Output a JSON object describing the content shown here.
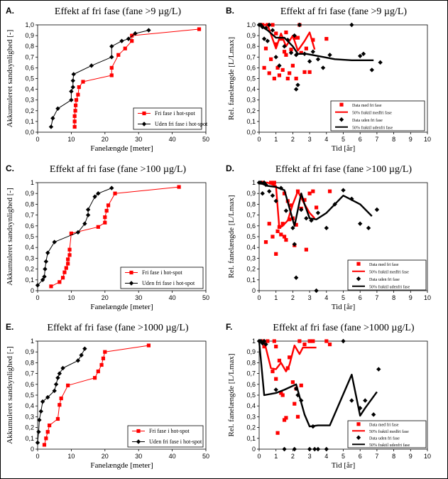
{
  "colors": {
    "red": "#ff0000",
    "black": "#000000"
  },
  "chart_data": [
    {
      "letter": "A.",
      "type": "line",
      "title": "Effekt af fri fase (fane >9 µg/L)",
      "xlabel": "Fanelængde [meter]",
      "ylabel": "Akkumuleret sandsynlighed [-]",
      "xlim": [
        0,
        50
      ],
      "ylim": [
        0,
        1.0
      ],
      "xticks": [
        0,
        10,
        20,
        30,
        40,
        50
      ],
      "yticks": [
        0,
        0.1,
        0.2,
        0.3,
        0.4,
        0.5,
        0.6,
        0.7,
        0.8,
        0.9,
        1.0
      ],
      "ytick_labels": [
        "0,0",
        "0,1",
        "0,2",
        "0,3",
        "0,4",
        "0,5",
        "0,6",
        "0,7",
        "0,8",
        "0,9",
        "1,0"
      ],
      "legend": [
        "Fri fase i hot-spot",
        "Uden fri fase i hot-spot"
      ],
      "series": [
        {
          "name": "Fri fase i hot-spot",
          "style": "red-square-line",
          "x": [
            11,
            11,
            11,
            11.2,
            11.3,
            11.5,
            12,
            12.3,
            13.5,
            22,
            22,
            24,
            26,
            28,
            28,
            48
          ],
          "y": [
            0.05,
            0.1,
            0.15,
            0.2,
            0.25,
            0.3,
            0.35,
            0.42,
            0.47,
            0.53,
            0.6,
            0.72,
            0.78,
            0.85,
            0.9,
            0.96
          ]
        },
        {
          "name": "Uden fri fase i hot-spot",
          "style": "black-diamond-line",
          "x": [
            4,
            4.5,
            6,
            10,
            10,
            10.5,
            10.5,
            10.7,
            16,
            22,
            22,
            25,
            27,
            29,
            33
          ],
          "y": [
            0.05,
            0.13,
            0.22,
            0.3,
            0.38,
            0.42,
            0.48,
            0.54,
            0.62,
            0.7,
            0.8,
            0.85,
            0.87,
            0.92,
            0.95
          ]
        }
      ]
    },
    {
      "letter": "B.",
      "type": "scatter",
      "title": "Effekt af fri fase (fane >9 µg/L)",
      "xlabel": "Tid [år]",
      "ylabel": "Rel. fanelængde [L/Lmax]",
      "xlim": [
        0,
        10
      ],
      "ylim": [
        0,
        1.0
      ],
      "xticks": [
        0,
        1,
        2,
        3,
        4,
        5,
        6,
        7,
        8,
        9,
        10
      ],
      "yticks": [
        0,
        0.1,
        0.2,
        0.3,
        0.4,
        0.5,
        0.6,
        0.7,
        0.8,
        0.9,
        1.0
      ],
      "ytick_labels": [
        "0,0",
        "0,1",
        "0,2",
        "0,3",
        "0,4",
        "0,5",
        "0,6",
        "0,7",
        "0,8",
        "0,9",
        "1,0"
      ],
      "legend": [
        "Data med fri fase",
        "50% fraktil medfri fase",
        "Data uden fri fase",
        "50% fraktil udenfri fase"
      ],
      "series": [
        {
          "name": "Data med fri fase",
          "style": "red-square-points",
          "x": [
            0.1,
            0.2,
            0.3,
            0.4,
            0.5,
            0.6,
            0.8,
            1.0,
            1.1,
            1.3,
            1.5,
            1.6,
            1.7,
            2.0,
            2.1,
            2.3,
            2.5,
            2.7,
            3.0,
            3.2,
            0.9,
            1.2,
            1.4,
            1.8,
            1.9,
            2.2,
            0.7,
            1.0,
            2.8,
            4.0,
            1.6,
            2.4
          ],
          "y": [
            1.0,
            1.0,
            0.6,
            0.78,
            1.0,
            0.55,
            1.0,
            0.82,
            0.6,
            0.87,
            0.75,
            0.72,
            0.5,
            0.62,
            0.88,
            0.88,
            0.74,
            0.56,
            0.56,
            0.86,
            0.5,
            0.53,
            0.58,
            0.55,
            0.77,
            0.5,
            0.68,
            0.92,
            0.78,
            0.87,
            0.93,
            1.0
          ]
        },
        {
          "name": "50% fraktil medfri fase",
          "style": "red-line",
          "x": [
            0,
            0.5,
            1.0,
            1.3,
            1.6,
            2.0,
            2.3,
            2.7,
            3.0,
            3.3
          ],
          "y": [
            1.0,
            1.0,
            0.78,
            0.92,
            0.8,
            0.9,
            0.76,
            0.85,
            0.93,
            0.77
          ]
        },
        {
          "name": "Data uden fri fase",
          "style": "black-diamond-points",
          "x": [
            0,
            0.1,
            0.2,
            0.3,
            0.4,
            0.5,
            0.6,
            0.8,
            1.0,
            1.2,
            1.5,
            1.7,
            1.9,
            2.1,
            2.2,
            2.4,
            2.7,
            3.0,
            3.2,
            3.5,
            3.8,
            4.2,
            5.5,
            6.0,
            6.2,
            6.7,
            7.2,
            2.3,
            2.2
          ],
          "y": [
            1.0,
            1.0,
            0.98,
            0.87,
            0.97,
            0.85,
            1.0,
            0.95,
            0.7,
            0.62,
            0.8,
            0.86,
            0.74,
            0.9,
            0.72,
            1.0,
            0.73,
            0.66,
            0.75,
            0.68,
            0.6,
            0.72,
            1.0,
            0.71,
            0.73,
            0.58,
            0.65,
            0.44,
            0.4
          ]
        },
        {
          "name": "50% fraktil udenfri fase",
          "style": "black-line",
          "x": [
            0,
            0.5,
            1.0,
            1.5,
            2.0,
            2.3,
            2.8,
            3.5,
            4.5,
            5.5,
            6.0,
            6.8
          ],
          "y": [
            1.0,
            0.95,
            0.88,
            0.88,
            0.8,
            0.73,
            0.73,
            0.71,
            0.68,
            0.67,
            0.67,
            0.67
          ]
        }
      ]
    },
    {
      "letter": "C.",
      "type": "line",
      "title": "Effekt af fri fase (fane >100 µg/L)",
      "xlabel": "Fanelængde [meter]",
      "ylabel": "Akkumuleret sandsynlighed [-]",
      "xlim": [
        0,
        50
      ],
      "ylim": [
        0,
        1.0
      ],
      "xticks": [
        0,
        10,
        20,
        30,
        40,
        50
      ],
      "yticks": [
        0,
        0.1,
        0.2,
        0.3,
        0.4,
        0.5,
        0.6,
        0.7,
        0.8,
        0.9,
        1.0
      ],
      "ytick_labels": [
        "0",
        "0,1",
        "0,2",
        "0,3",
        "0,4",
        "0,5",
        "0,6",
        "0,7",
        "0,8",
        "0,9",
        "1"
      ],
      "legend": [
        "Fri fase i hot-spot",
        "Uden fri fase i hot-spot"
      ],
      "series": [
        {
          "name": "Fri fase i hot-spot",
          "style": "red-square-line",
          "x": [
            4,
            6.5,
            7.5,
            8,
            8.5,
            9,
            9,
            9.5,
            9.5,
            10,
            18,
            20,
            20,
            20.5,
            21,
            23,
            42
          ],
          "y": [
            0.04,
            0.08,
            0.12,
            0.17,
            0.21,
            0.25,
            0.29,
            0.33,
            0.38,
            0.53,
            0.59,
            0.63,
            0.68,
            0.74,
            0.79,
            0.9,
            0.96
          ]
        },
        {
          "name": "Uden fri fase i hot-spot",
          "style": "black-diamond-line",
          "x": [
            0,
            1.5,
            2,
            2.2,
            2.5,
            3,
            5,
            12,
            14,
            15,
            15,
            17,
            18,
            22
          ],
          "y": [
            0.05,
            0.1,
            0.13,
            0.2,
            0.27,
            0.35,
            0.45,
            0.54,
            0.62,
            0.7,
            0.75,
            0.87,
            0.9,
            0.95
          ]
        }
      ]
    },
    {
      "letter": "D.",
      "type": "scatter",
      "title": "Effekt af fri fase (fane >100 µg/L)",
      "xlabel": "Tid [år]",
      "ylabel": "Rel. fanelængde [L/Lmax]",
      "xlim": [
        0,
        10
      ],
      "ylim": [
        0,
        1.0
      ],
      "xticks": [
        0,
        1,
        2,
        3,
        4,
        5,
        6,
        7,
        8,
        9,
        10
      ],
      "yticks": [
        0,
        0.1,
        0.2,
        0.3,
        0.4,
        0.5,
        0.6,
        0.7,
        0.8,
        0.9,
        1.0
      ],
      "ytick_labels": [
        "0",
        "0,1",
        "0,2",
        "0,3",
        "0,4",
        "0,5",
        "0,6",
        "0,7",
        "0,8",
        "0,9",
        "1"
      ],
      "legend": [
        "Data med fri fase",
        "50% fraktil medfri fase",
        "Data uden fri fase",
        "50% fraktil udenfri fase"
      ],
      "series": [
        {
          "name": "Data med fri fase",
          "style": "red-square-points",
          "x": [
            0.2,
            0.4,
            0.6,
            0.8,
            1.0,
            1.1,
            1.2,
            1.3,
            1.4,
            1.5,
            1.6,
            1.7,
            1.8,
            2.0,
            2.1,
            2.3,
            2.5,
            2.7,
            2.8,
            3.0,
            3.2,
            3.4,
            4.2,
            0.7,
            0.9,
            1.5,
            2.2,
            1.9
          ],
          "y": [
            1.0,
            0.45,
            0.62,
            0.5,
            0.34,
            0.55,
            0.59,
            0.52,
            0.62,
            0.5,
            0.47,
            0.83,
            0.66,
            0.67,
            0.42,
            0.92,
            0.76,
            0.84,
            0.38,
            0.9,
            0.92,
            0.77,
            0.92,
            1.0,
            1.0,
            0.9,
            0.61,
            0.79
          ]
        },
        {
          "name": "50% fraktil medfri fase",
          "style": "red-line",
          "x": [
            0,
            0.5,
            1.0,
            1.2,
            1.4,
            1.7,
            2.0,
            2.3,
            2.7,
            3.0,
            3.3
          ],
          "y": [
            1.0,
            1.0,
            0.97,
            0.58,
            0.6,
            0.65,
            0.8,
            0.92,
            0.8,
            0.72,
            0.67
          ]
        },
        {
          "name": "Data uden fri fase",
          "style": "black-diamond-points",
          "x": [
            0,
            0.1,
            0.2,
            0.3,
            0.4,
            0.6,
            0.8,
            1.0,
            1.3,
            1.6,
            2.0,
            2.2,
            2.5,
            2.8,
            3.1,
            3.5,
            4.0,
            4.5,
            5.0,
            5.5,
            6.0,
            6.5,
            7.0,
            2.1,
            3.4
          ],
          "y": [
            1.0,
            1.0,
            0.9,
            1.0,
            0.98,
            0.92,
            0.88,
            0.83,
            0.95,
            0.74,
            0.58,
            0.12,
            0.75,
            0.67,
            0.65,
            0.72,
            0.58,
            0.8,
            0.93,
            0.85,
            0.62,
            0.58,
            0.75,
            0.43,
            0.0
          ]
        },
        {
          "name": "50% fraktil udenfri fase",
          "style": "black-line",
          "x": [
            0,
            0.5,
            1.0,
            1.5,
            2.1,
            2.5,
            2.7,
            3.0,
            3.4,
            4.0,
            5.0,
            5.5,
            6.0,
            6.7
          ],
          "y": [
            1.0,
            0.97,
            0.96,
            0.93,
            0.6,
            0.9,
            0.8,
            0.67,
            0.66,
            0.72,
            0.88,
            0.84,
            0.8,
            0.69
          ]
        }
      ]
    },
    {
      "letter": "E.",
      "type": "line",
      "title": "Effekt af fri fase (fane >1000 µg/L)",
      "xlabel": "Fanelængde [meter]",
      "ylabel": "Akkumuleret sandsynlighed [-]",
      "xlim": [
        0,
        50
      ],
      "ylim": [
        0,
        1.0
      ],
      "xticks": [
        0,
        10,
        20,
        30,
        40,
        50
      ],
      "yticks": [
        0,
        0.1,
        0.2,
        0.3,
        0.4,
        0.5,
        0.6,
        0.7,
        0.8,
        0.9,
        1.0
      ],
      "ytick_labels": [
        "0",
        "0,1",
        "0,2",
        "0,3",
        "0,4",
        "0,5",
        "0,6",
        "0,7",
        "0,8",
        "0,9",
        "1"
      ],
      "legend": [
        "Fri fase i hot-spot",
        "Uden fri fase i hot-spot"
      ],
      "series": [
        {
          "name": "Fri fase i hot-spot",
          "style": "red-square-line",
          "x": [
            2,
            2.5,
            3,
            3.5,
            6,
            6.5,
            7,
            9,
            17,
            18,
            19,
            19.5,
            20,
            33
          ],
          "y": [
            0.04,
            0.1,
            0.16,
            0.22,
            0.28,
            0.41,
            0.47,
            0.59,
            0.66,
            0.72,
            0.78,
            0.84,
            0.9,
            0.96
          ]
        },
        {
          "name": "Uden fri fase i hot-spot",
          "style": "black-diamond-line",
          "x": [
            0,
            0.3,
            0.5,
            1,
            1.5,
            3,
            5,
            5.5,
            6,
            6.5,
            7.5,
            12,
            13,
            14
          ],
          "y": [
            0.06,
            0.16,
            0.27,
            0.35,
            0.44,
            0.48,
            0.54,
            0.6,
            0.66,
            0.7,
            0.75,
            0.82,
            0.87,
            0.93
          ]
        }
      ]
    },
    {
      "letter": "F.",
      "type": "scatter",
      "title": "Effekt af fri fase (fane >1000 µg/L)",
      "xlabel": "Tid [år]",
      "ylabel": "Rel. fanelængde [L/Lmax]",
      "xlim": [
        0,
        10
      ],
      "ylim": [
        0,
        1.0
      ],
      "xticks": [
        0,
        1,
        2,
        3,
        4,
        5,
        6,
        7,
        8,
        9,
        10
      ],
      "yticks": [
        0,
        0.1,
        0.2,
        0.3,
        0.4,
        0.5,
        0.6,
        0.7,
        0.8,
        0.9,
        1.0
      ],
      "ytick_labels": [
        "0",
        "0,1",
        "0,2",
        "0,3",
        "0,4",
        "0,5",
        "0,6",
        "0,7",
        "0,8",
        "0,9",
        "1"
      ],
      "legend": [
        "Data med fri fase",
        "50% fraktil medfri fase",
        "Data uden fri fase",
        "50% fraktil udenfri fase"
      ],
      "series": [
        {
          "name": "Data med fri fase",
          "style": "red-square-points",
          "x": [
            0.2,
            0.3,
            0.5,
            0.8,
            1.0,
            1.1,
            1.2,
            1.3,
            1.5,
            1.6,
            1.8,
            2.0,
            2.2,
            2.3,
            2.5,
            2.7,
            3.0,
            3.2,
            4.0,
            4.2,
            1.0,
            1.7,
            2.4,
            0.9,
            1.4,
            2.1
          ],
          "y": [
            1.0,
            0.95,
            1.0,
            0.72,
            0.65,
            0.15,
            0.82,
            0.52,
            0.27,
            0.29,
            0.85,
            0.62,
            0.56,
            0.3,
            0.59,
            0.97,
            1.0,
            1.0,
            1.0,
            0.97,
            0.95,
            0.75,
            1.0,
            1.0,
            0.5,
            0.42
          ]
        },
        {
          "name": "50% fraktil medfri fase",
          "style": "red-line",
          "x": [
            0,
            0.3,
            0.7,
            1.0,
            1.3,
            1.6,
            1.8,
            2.1,
            2.4,
            2.6,
            3.0,
            3.4
          ],
          "y": [
            1.0,
            1.0,
            0.75,
            0.74,
            0.8,
            0.72,
            0.78,
            0.96,
            0.88,
            0.94,
            0.94,
            0.94
          ]
        },
        {
          "name": "Data uden fri fase",
          "style": "black-diamond-points",
          "x": [
            0,
            0.1,
            0.2,
            0.3,
            0.4,
            1.0,
            1.5,
            2.1,
            2.3,
            2.5,
            3.0,
            3.2,
            3.5,
            4.0,
            5.0,
            5.5,
            6.0,
            6.3,
            6.8,
            7.1,
            2.2,
            3.3
          ],
          "y": [
            1.0,
            1.0,
            0.98,
            1.0,
            0.97,
            0.55,
            0.0,
            0.0,
            0.5,
            0.45,
            0.0,
            0.21,
            0.0,
            0.0,
            1.0,
            0.45,
            0.38,
            0.45,
            0.32,
            0.74,
            0.56,
            0.0
          ]
        },
        {
          "name": "50% fraktil udenfri fase",
          "style": "black-line",
          "x": [
            0,
            0.3,
            1.0,
            1.5,
            2.2,
            2.7,
            3.0,
            3.5,
            4.2,
            5.5,
            6.0,
            6.3,
            7.0
          ],
          "y": [
            1.0,
            0.5,
            0.52,
            0.55,
            0.6,
            0.32,
            0.21,
            0.22,
            0.22,
            0.69,
            0.31,
            0.38,
            0.53
          ]
        }
      ]
    }
  ]
}
